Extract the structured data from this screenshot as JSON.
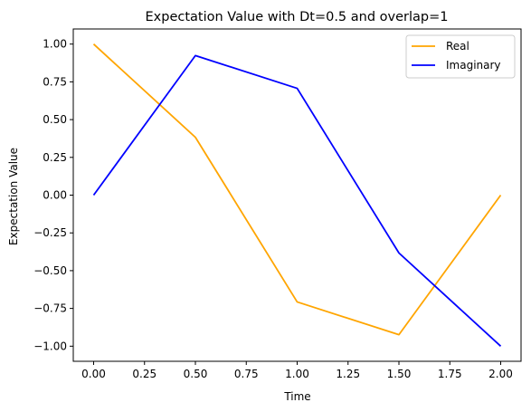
{
  "chart_data": {
    "type": "line",
    "title": "Expectation Value with Dt=0.5 and overlap=1",
    "xlabel": "Time",
    "ylabel": "Expectation Value",
    "xlim": [
      -0.1,
      2.1
    ],
    "ylim": [
      -1.1,
      1.1
    ],
    "x": [
      0.0,
      0.5,
      1.0,
      1.5,
      2.0
    ],
    "xticks": [
      "0.00",
      "0.25",
      "0.50",
      "0.75",
      "1.00",
      "1.25",
      "1.50",
      "1.75",
      "2.00"
    ],
    "yticks": [
      "1.00",
      "0.75",
      "0.50",
      "0.25",
      "0.00",
      "−0.25",
      "−0.50",
      "−0.75",
      "−1.00"
    ],
    "grid": false,
    "legend_position": "top-right",
    "series": [
      {
        "name": "Real",
        "color": "#ffa500",
        "values": [
          1.0,
          0.383,
          -0.707,
          -0.924,
          0.0
        ]
      },
      {
        "name": "Imaginary",
        "color": "#0000ff",
        "values": [
          0.0,
          0.924,
          0.707,
          -0.383,
          -1.0
        ]
      }
    ]
  }
}
